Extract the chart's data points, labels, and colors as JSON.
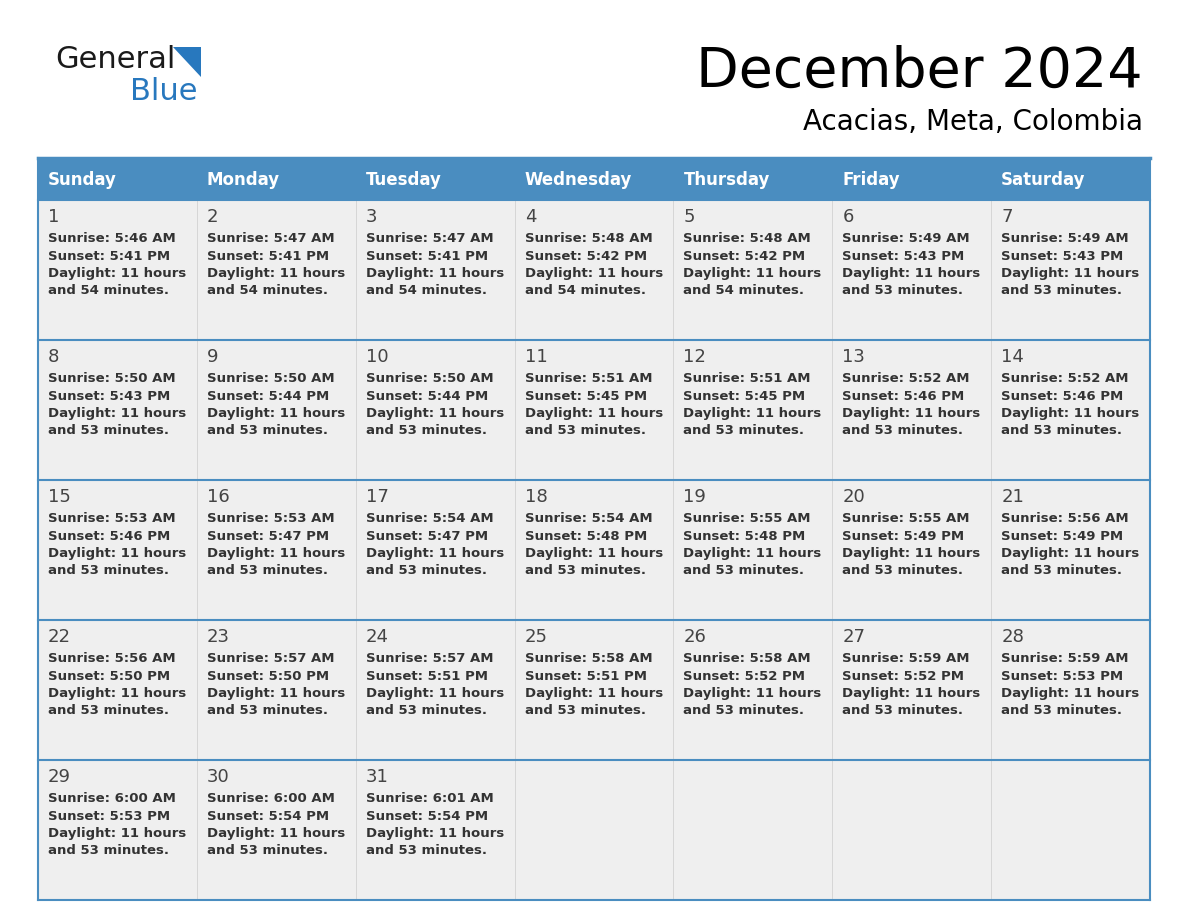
{
  "title": "December 2024",
  "subtitle": "Acacias, Meta, Colombia",
  "days_of_week": [
    "Sunday",
    "Monday",
    "Tuesday",
    "Wednesday",
    "Thursday",
    "Friday",
    "Saturday"
  ],
  "header_bg": "#4A8DC0",
  "header_text": "#FFFFFF",
  "cell_bg_white": "#FFFFFF",
  "cell_bg_gray": "#EFEFEF",
  "grid_line_color": "#4A8DC0",
  "text_color": "#333333",
  "day_number_color": "#444444",
  "logo_general_color": "#1a1a1a",
  "logo_blue_color": "#2878BE",
  "logo_triangle_color": "#2878BE",
  "calendar_data": [
    [
      {
        "day": 1,
        "sunrise": "5:46 AM",
        "sunset": "5:41 PM",
        "daylight_h": "11 hours",
        "daylight_m": "and 54 minutes."
      },
      {
        "day": 2,
        "sunrise": "5:47 AM",
        "sunset": "5:41 PM",
        "daylight_h": "11 hours",
        "daylight_m": "and 54 minutes."
      },
      {
        "day": 3,
        "sunrise": "5:47 AM",
        "sunset": "5:41 PM",
        "daylight_h": "11 hours",
        "daylight_m": "and 54 minutes."
      },
      {
        "day": 4,
        "sunrise": "5:48 AM",
        "sunset": "5:42 PM",
        "daylight_h": "11 hours",
        "daylight_m": "and 54 minutes."
      },
      {
        "day": 5,
        "sunrise": "5:48 AM",
        "sunset": "5:42 PM",
        "daylight_h": "11 hours",
        "daylight_m": "and 54 minutes."
      },
      {
        "day": 6,
        "sunrise": "5:49 AM",
        "sunset": "5:43 PM",
        "daylight_h": "11 hours",
        "daylight_m": "and 53 minutes."
      },
      {
        "day": 7,
        "sunrise": "5:49 AM",
        "sunset": "5:43 PM",
        "daylight_h": "11 hours",
        "daylight_m": "and 53 minutes."
      }
    ],
    [
      {
        "day": 8,
        "sunrise": "5:50 AM",
        "sunset": "5:43 PM",
        "daylight_h": "11 hours",
        "daylight_m": "and 53 minutes."
      },
      {
        "day": 9,
        "sunrise": "5:50 AM",
        "sunset": "5:44 PM",
        "daylight_h": "11 hours",
        "daylight_m": "and 53 minutes."
      },
      {
        "day": 10,
        "sunrise": "5:50 AM",
        "sunset": "5:44 PM",
        "daylight_h": "11 hours",
        "daylight_m": "and 53 minutes."
      },
      {
        "day": 11,
        "sunrise": "5:51 AM",
        "sunset": "5:45 PM",
        "daylight_h": "11 hours",
        "daylight_m": "and 53 minutes."
      },
      {
        "day": 12,
        "sunrise": "5:51 AM",
        "sunset": "5:45 PM",
        "daylight_h": "11 hours",
        "daylight_m": "and 53 minutes."
      },
      {
        "day": 13,
        "sunrise": "5:52 AM",
        "sunset": "5:46 PM",
        "daylight_h": "11 hours",
        "daylight_m": "and 53 minutes."
      },
      {
        "day": 14,
        "sunrise": "5:52 AM",
        "sunset": "5:46 PM",
        "daylight_h": "11 hours",
        "daylight_m": "and 53 minutes."
      }
    ],
    [
      {
        "day": 15,
        "sunrise": "5:53 AM",
        "sunset": "5:46 PM",
        "daylight_h": "11 hours",
        "daylight_m": "and 53 minutes."
      },
      {
        "day": 16,
        "sunrise": "5:53 AM",
        "sunset": "5:47 PM",
        "daylight_h": "11 hours",
        "daylight_m": "and 53 minutes."
      },
      {
        "day": 17,
        "sunrise": "5:54 AM",
        "sunset": "5:47 PM",
        "daylight_h": "11 hours",
        "daylight_m": "and 53 minutes."
      },
      {
        "day": 18,
        "sunrise": "5:54 AM",
        "sunset": "5:48 PM",
        "daylight_h": "11 hours",
        "daylight_m": "and 53 minutes."
      },
      {
        "day": 19,
        "sunrise": "5:55 AM",
        "sunset": "5:48 PM",
        "daylight_h": "11 hours",
        "daylight_m": "and 53 minutes."
      },
      {
        "day": 20,
        "sunrise": "5:55 AM",
        "sunset": "5:49 PM",
        "daylight_h": "11 hours",
        "daylight_m": "and 53 minutes."
      },
      {
        "day": 21,
        "sunrise": "5:56 AM",
        "sunset": "5:49 PM",
        "daylight_h": "11 hours",
        "daylight_m": "and 53 minutes."
      }
    ],
    [
      {
        "day": 22,
        "sunrise": "5:56 AM",
        "sunset": "5:50 PM",
        "daylight_h": "11 hours",
        "daylight_m": "and 53 minutes."
      },
      {
        "day": 23,
        "sunrise": "5:57 AM",
        "sunset": "5:50 PM",
        "daylight_h": "11 hours",
        "daylight_m": "and 53 minutes."
      },
      {
        "day": 24,
        "sunrise": "5:57 AM",
        "sunset": "5:51 PM",
        "daylight_h": "11 hours",
        "daylight_m": "and 53 minutes."
      },
      {
        "day": 25,
        "sunrise": "5:58 AM",
        "sunset": "5:51 PM",
        "daylight_h": "11 hours",
        "daylight_m": "and 53 minutes."
      },
      {
        "day": 26,
        "sunrise": "5:58 AM",
        "sunset": "5:52 PM",
        "daylight_h": "11 hours",
        "daylight_m": "and 53 minutes."
      },
      {
        "day": 27,
        "sunrise": "5:59 AM",
        "sunset": "5:52 PM",
        "daylight_h": "11 hours",
        "daylight_m": "and 53 minutes."
      },
      {
        "day": 28,
        "sunrise": "5:59 AM",
        "sunset": "5:53 PM",
        "daylight_h": "11 hours",
        "daylight_m": "and 53 minutes."
      }
    ],
    [
      {
        "day": 29,
        "sunrise": "6:00 AM",
        "sunset": "5:53 PM",
        "daylight_h": "11 hours",
        "daylight_m": "and 53 minutes."
      },
      {
        "day": 30,
        "sunrise": "6:00 AM",
        "sunset": "5:54 PM",
        "daylight_h": "11 hours",
        "daylight_m": "and 53 minutes."
      },
      {
        "day": 31,
        "sunrise": "6:01 AM",
        "sunset": "5:54 PM",
        "daylight_h": "11 hours",
        "daylight_m": "and 53 minutes."
      },
      null,
      null,
      null,
      null
    ]
  ]
}
